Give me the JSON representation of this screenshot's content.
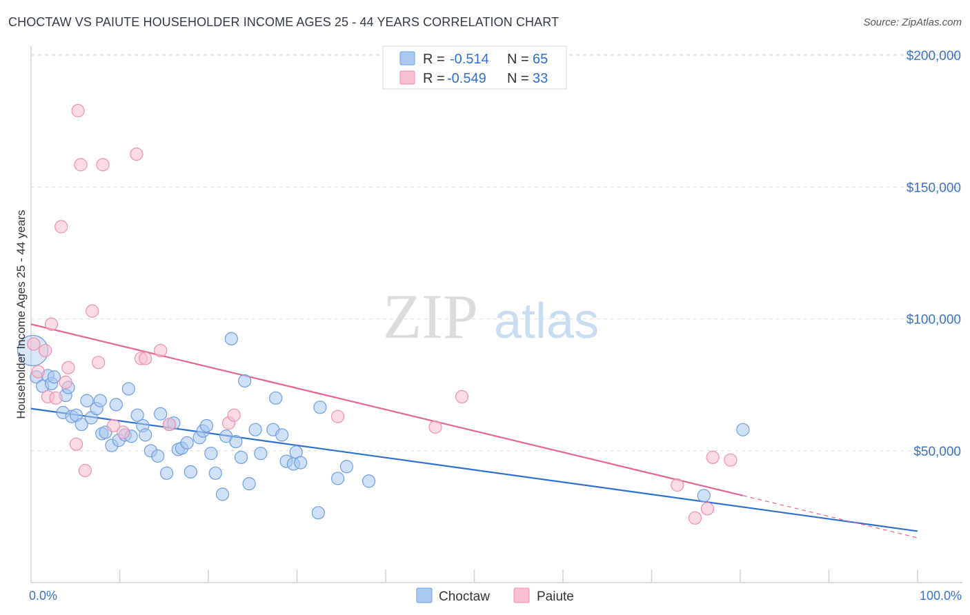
{
  "header": {
    "title": "CHOCTAW VS PAIUTE HOUSEHOLDER INCOME AGES 25 - 44 YEARS CORRELATION CHART",
    "source": "Source: ZipAtlas.com"
  },
  "watermark": {
    "zip": "ZIP",
    "atlas": "atlas"
  },
  "colors": {
    "choctaw_fill": "#a9c9f0",
    "choctaw_stroke": "#6d9ee0",
    "choctaw_line": "#2f6fd0",
    "paiute_fill": "#f7bfd0",
    "paiute_stroke": "#ee8fae",
    "paiute_line": "#e4668f",
    "value_text": "#2f6fd0",
    "grid": "#dddddd"
  },
  "legend": {
    "r_label": "R =",
    "n_label": "N =",
    "rows": [
      {
        "series": "Choctaw",
        "r": "-0.514",
        "n": "65"
      },
      {
        "series": "Paiute",
        "r": "-0.549",
        "n": "33"
      }
    ]
  },
  "chart_data": {
    "type": "scatter",
    "title": "CHOCTAW VS PAIUTE HOUSEHOLDER INCOME AGES 25 - 44 YEARS CORRELATION CHART",
    "xlabel": "",
    "ylabel": "Householder Income Ages 25 - 44 years",
    "xlim": [
      0,
      100
    ],
    "ylim": [
      0,
      205000
    ],
    "x_tick_labels": [
      "0.0%",
      "100.0%"
    ],
    "y_ticks": [
      50000,
      100000,
      150000,
      200000
    ],
    "y_tick_labels": [
      "$50,000",
      "$100,000",
      "$150,000",
      "$200,000"
    ],
    "grid": true,
    "legend_position": "top-center",
    "series": [
      {
        "name": "Choctaw",
        "trend": {
          "x": [
            0,
            100
          ],
          "y": [
            66000,
            19500
          ]
        },
        "points": [
          [
            0.2,
            88000
          ],
          [
            0.6,
            78000
          ],
          [
            1.3,
            74500
          ],
          [
            1.9,
            78500
          ],
          [
            2.3,
            75500
          ],
          [
            2.6,
            78000
          ],
          [
            3.6,
            64500
          ],
          [
            3.9,
            71000
          ],
          [
            4.2,
            74000
          ],
          [
            4.6,
            63000
          ],
          [
            5.1,
            63500
          ],
          [
            5.7,
            60000
          ],
          [
            6.3,
            69000
          ],
          [
            6.8,
            62500
          ],
          [
            7.4,
            66000
          ],
          [
            7.8,
            69000
          ],
          [
            8.0,
            56500
          ],
          [
            8.4,
            57000
          ],
          [
            9.1,
            52000
          ],
          [
            9.6,
            67500
          ],
          [
            9.9,
            54000
          ],
          [
            10.6,
            56000
          ],
          [
            11.0,
            73500
          ],
          [
            11.3,
            55500
          ],
          [
            12.0,
            63500
          ],
          [
            12.6,
            59500
          ],
          [
            12.9,
            56000
          ],
          [
            13.5,
            50000
          ],
          [
            14.3,
            48000
          ],
          [
            14.6,
            64000
          ],
          [
            15.3,
            41500
          ],
          [
            15.6,
            60000
          ],
          [
            16.1,
            60500
          ],
          [
            16.6,
            50500
          ],
          [
            17.0,
            51000
          ],
          [
            17.6,
            53000
          ],
          [
            18.0,
            42000
          ],
          [
            19.0,
            55000
          ],
          [
            19.4,
            57500
          ],
          [
            19.8,
            59500
          ],
          [
            20.3,
            49000
          ],
          [
            20.8,
            41500
          ],
          [
            21.6,
            33500
          ],
          [
            22.0,
            55500
          ],
          [
            22.6,
            92500
          ],
          [
            23.1,
            53500
          ],
          [
            23.7,
            47500
          ],
          [
            24.1,
            76500
          ],
          [
            24.6,
            37500
          ],
          [
            25.3,
            58000
          ],
          [
            25.9,
            49000
          ],
          [
            27.3,
            58000
          ],
          [
            27.6,
            70000
          ],
          [
            28.3,
            56000
          ],
          [
            28.8,
            46000
          ],
          [
            29.6,
            45000
          ],
          [
            29.9,
            49500
          ],
          [
            30.4,
            45500
          ],
          [
            32.4,
            26500
          ],
          [
            32.6,
            66500
          ],
          [
            34.6,
            39500
          ],
          [
            35.6,
            44000
          ],
          [
            38.1,
            38500
          ],
          [
            75.9,
            33000
          ],
          [
            80.3,
            58000
          ]
        ]
      },
      {
        "name": "Paiute",
        "trend": {
          "x": [
            0,
            80.3
          ],
          "y": [
            98000,
            33000
          ]
        },
        "trend_extension": {
          "x": [
            80.3,
            100
          ],
          "y": [
            33000,
            17000
          ]
        },
        "points": [
          [
            0.3,
            90500
          ],
          [
            0.8,
            80000
          ],
          [
            1.6,
            88000
          ],
          [
            1.9,
            70500
          ],
          [
            2.3,
            98000
          ],
          [
            2.8,
            70000
          ],
          [
            3.4,
            135000
          ],
          [
            3.9,
            76000
          ],
          [
            4.2,
            81500
          ],
          [
            5.1,
            52500
          ],
          [
            5.3,
            179000
          ],
          [
            5.6,
            158500
          ],
          [
            6.1,
            42500
          ],
          [
            6.9,
            103000
          ],
          [
            7.6,
            83500
          ],
          [
            8.1,
            158500
          ],
          [
            9.3,
            59500
          ],
          [
            10.4,
            57000
          ],
          [
            11.9,
            162500
          ],
          [
            12.4,
            85000
          ],
          [
            12.9,
            85000
          ],
          [
            14.6,
            88000
          ],
          [
            15.6,
            60000
          ],
          [
            22.3,
            60500
          ],
          [
            22.9,
            63500
          ],
          [
            34.6,
            63000
          ],
          [
            45.6,
            59000
          ],
          [
            48.6,
            70500
          ],
          [
            72.9,
            37000
          ],
          [
            74.9,
            24500
          ],
          [
            76.3,
            28000
          ],
          [
            76.9,
            47500
          ],
          [
            78.9,
            46500
          ]
        ]
      }
    ]
  },
  "bottom_legend": {
    "items": [
      "Choctaw",
      "Paiute"
    ]
  }
}
